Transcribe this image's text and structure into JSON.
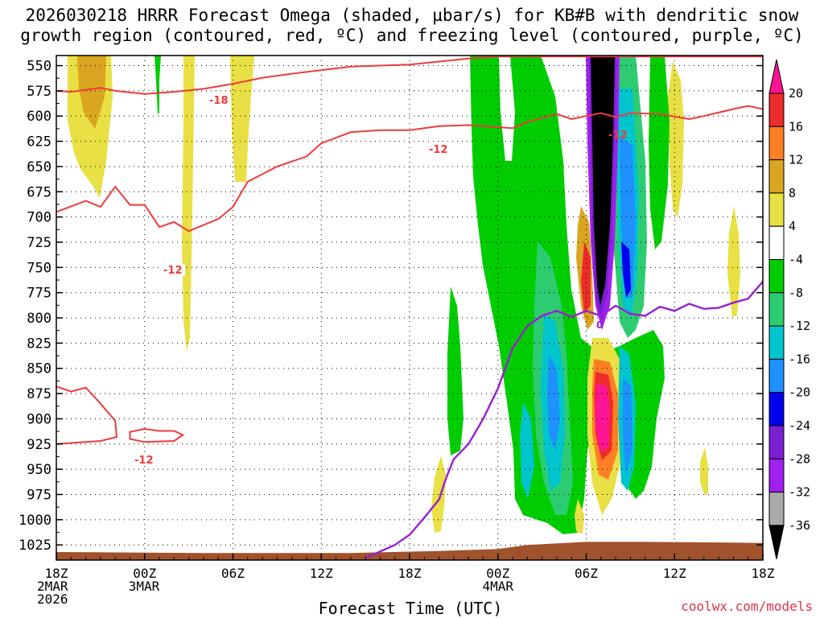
{
  "chart_data": {
    "type": "time-height cross section (filled contours)",
    "title_line_1": "2026030218 HRRR Forecast Omega (shaded, µbar/s) for KB#B with dendritic snow",
    "title_line_2": "growth region (contoured, red, ºC) and freezing level (contoured, purple, ºC)",
    "xlabel": "Forecast Time (UTC)",
    "ylabel": "",
    "credit": "coolwx.com/models",
    "x_unit": "forecast hour",
    "x_range": [
      0,
      48
    ],
    "x_ticks": [
      {
        "hour": 0,
        "line1": "18Z",
        "line2": "2MAR",
        "line3": "2026"
      },
      {
        "hour": 6,
        "line1": "00Z",
        "line2": "3MAR",
        "line3": ""
      },
      {
        "hour": 12,
        "line1": "06Z",
        "line2": "",
        "line3": ""
      },
      {
        "hour": 18,
        "line1": "12Z",
        "line2": "",
        "line3": ""
      },
      {
        "hour": 24,
        "line1": "18Z",
        "line2": "",
        "line3": ""
      },
      {
        "hour": 30,
        "line1": "00Z",
        "line2": "4MAR",
        "line3": ""
      },
      {
        "hour": 36,
        "line1": "06Z",
        "line2": "",
        "line3": ""
      },
      {
        "hour": 42,
        "line1": "12Z",
        "line2": "",
        "line3": ""
      },
      {
        "hour": 48,
        "line1": "18Z",
        "line2": "",
        "line3": ""
      }
    ],
    "y_unit": "hPa",
    "y_range": [
      1040,
      540
    ],
    "y_ticks": [
      550,
      575,
      600,
      625,
      650,
      675,
      700,
      725,
      750,
      775,
      800,
      825,
      850,
      875,
      900,
      925,
      950,
      975,
      1000,
      1025
    ],
    "colorbar": {
      "levels": [
        20,
        16,
        12,
        8,
        4,
        -4,
        -8,
        -12,
        -16,
        -20,
        -24,
        -28,
        -32,
        -36
      ],
      "colors": [
        "#ff1493",
        "#ee2c2c",
        "#ff7f24",
        "#daa520",
        "#e8e044",
        "#ffffff",
        "#00cd00",
        "#2ecc71",
        "#00c5cd",
        "#1e90ff",
        "#0000ee",
        "#7b1fd1",
        "#a020f0",
        "#aaaaaa",
        "#000000"
      ]
    },
    "contour_labels": {
      "dgz_upper": "-18",
      "dgz_lower": "-12",
      "dgz_mid": "-12",
      "dgz_right": "-12",
      "dgz_closed": "-12",
      "freezing": "0"
    },
    "dgz_upper_contour": [
      [
        0,
        575
      ],
      [
        1,
        576
      ],
      [
        3,
        572
      ],
      [
        4,
        575
      ],
      [
        6,
        578
      ],
      [
        8,
        576
      ],
      [
        10,
        573
      ],
      [
        12,
        568
      ],
      [
        14,
        562
      ],
      [
        16,
        558
      ],
      [
        20,
        551
      ],
      [
        24,
        549
      ],
      [
        26,
        546
      ],
      [
        28,
        543
      ],
      [
        30,
        541
      ],
      [
        32,
        541
      ],
      [
        34,
        541
      ],
      [
        36,
        541
      ],
      [
        38,
        541
      ],
      [
        40,
        541
      ],
      [
        42,
        541
      ],
      [
        44,
        541
      ],
      [
        46,
        541
      ],
      [
        48,
        541
      ]
    ],
    "dgz_lower_contour": [
      [
        0,
        695
      ],
      [
        2,
        684
      ],
      [
        3,
        690
      ],
      [
        4,
        670
      ],
      [
        5,
        688
      ],
      [
        6,
        688
      ],
      [
        7,
        710
      ],
      [
        8,
        705
      ],
      [
        9,
        714
      ],
      [
        11,
        702
      ],
      [
        12,
        690
      ],
      [
        13,
        665
      ],
      [
        15,
        650
      ],
      [
        17,
        640
      ],
      [
        18,
        627
      ],
      [
        20,
        616
      ],
      [
        22,
        614
      ],
      [
        24,
        614
      ],
      [
        26,
        610
      ],
      [
        28,
        609
      ],
      [
        30,
        611
      ],
      [
        31,
        612
      ],
      [
        32,
        606
      ],
      [
        34,
        598
      ],
      [
        35,
        603
      ],
      [
        36,
        600
      ],
      [
        37,
        597
      ],
      [
        38,
        601
      ],
      [
        39,
        597
      ],
      [
        41,
        598
      ],
      [
        43,
        603
      ],
      [
        44,
        600
      ],
      [
        46,
        593
      ],
      [
        47,
        590
      ],
      [
        48,
        593
      ]
    ],
    "dgz_left_contour": [
      [
        0,
        868
      ],
      [
        1,
        873
      ],
      [
        2,
        869
      ],
      [
        3,
        885
      ],
      [
        4,
        902
      ],
      [
        4.1,
        918
      ],
      [
        3,
        922
      ],
      [
        0,
        925
      ]
    ],
    "dgz_closed_contour": [
      [
        5,
        913
      ],
      [
        6,
        910
      ],
      [
        7,
        912
      ],
      [
        8,
        912
      ],
      [
        8.6,
        916
      ],
      [
        8,
        922
      ],
      [
        6,
        923
      ],
      [
        5,
        920
      ]
    ],
    "freezing_contour": [
      [
        21,
        1038
      ],
      [
        23,
        1025
      ],
      [
        24,
        1015
      ],
      [
        25,
        998
      ],
      [
        26,
        980
      ],
      [
        26.5,
        958
      ],
      [
        27,
        940
      ],
      [
        28,
        925
      ],
      [
        29,
        900
      ],
      [
        30,
        870
      ],
      [
        31,
        830
      ],
      [
        32,
        808
      ],
      [
        33,
        798
      ],
      [
        34,
        793
      ],
      [
        35,
        799
      ],
      [
        36,
        793
      ],
      [
        37,
        798
      ],
      [
        38,
        788
      ],
      [
        39,
        796
      ],
      [
        40,
        798
      ],
      [
        41,
        789
      ],
      [
        42,
        793
      ],
      [
        43,
        786
      ],
      [
        44,
        791
      ],
      [
        45,
        790
      ],
      [
        46,
        785
      ],
      [
        47,
        781
      ],
      [
        48,
        764
      ]
    ],
    "surface_terrain": [
      [
        0,
        1032
      ],
      [
        10,
        1033
      ],
      [
        20,
        1033
      ],
      [
        26,
        1031
      ],
      [
        30,
        1029
      ],
      [
        32,
        1025
      ],
      [
        36,
        1022
      ],
      [
        40,
        1022
      ],
      [
        48,
        1023
      ]
    ]
  }
}
